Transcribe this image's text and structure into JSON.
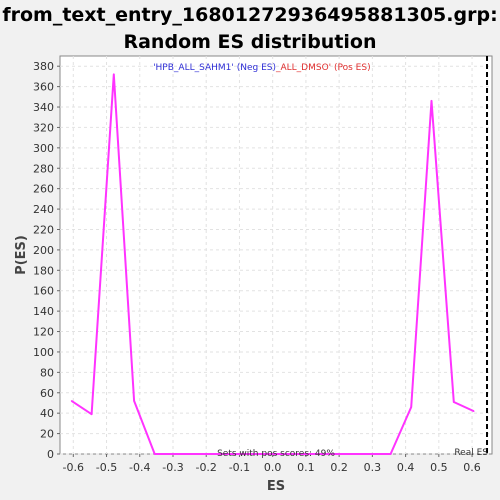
{
  "chart_data": {
    "type": "line",
    "title_line1": "from_text_entry_16801272936495881305.grp:",
    "title_line2": "Random ES distribution",
    "xlabel": "ES",
    "ylabel": "P(ES)",
    "xlim": [
      -0.64,
      0.66
    ],
    "ylim": [
      0,
      390
    ],
    "xticks": [
      -0.6,
      -0.5,
      -0.4,
      -0.3,
      -0.2,
      -0.1,
      0.0,
      0.1,
      0.2,
      0.3,
      0.4,
      0.5,
      0.6
    ],
    "xtick_labels": [
      "-0.6",
      "-0.5",
      "-0.4",
      "-0.3",
      "-0.2",
      "-0.1",
      "0.0",
      "0.1",
      "0.2",
      "0.3",
      "0.4",
      "0.5",
      "0.6"
    ],
    "yticks": [
      0,
      20,
      40,
      60,
      80,
      100,
      120,
      140,
      160,
      180,
      200,
      220,
      240,
      260,
      280,
      300,
      320,
      340,
      360,
      380
    ],
    "ytick_labels": [
      "0",
      "20",
      "40",
      "60",
      "80",
      "100",
      "120",
      "140",
      "160",
      "180",
      "200",
      "220",
      "240",
      "260",
      "280",
      "300",
      "320",
      "340",
      "360",
      "380"
    ],
    "grid": true,
    "series": [
      {
        "color": "#ff33ff",
        "x": [
          -0.605,
          -0.545,
          -0.478,
          -0.417,
          -0.355,
          0.355,
          0.417,
          0.478,
          0.545,
          0.605
        ],
        "y": [
          52,
          39,
          372,
          52,
          0,
          0,
          46,
          346,
          51,
          42
        ]
      }
    ],
    "real_es": {
      "x": 0.645,
      "label": "Real ES"
    },
    "legend": {
      "neg_text": "'HPB_ALL_SAHM1' (Neg ES)",
      "pos_text": "_ALL_DMSO' (Pos ES)",
      "neg_color": "#2f2fd6",
      "pos_color": "#e03030",
      "placement": "top-center"
    },
    "annotation": "Sets with pos scores: 49%"
  }
}
